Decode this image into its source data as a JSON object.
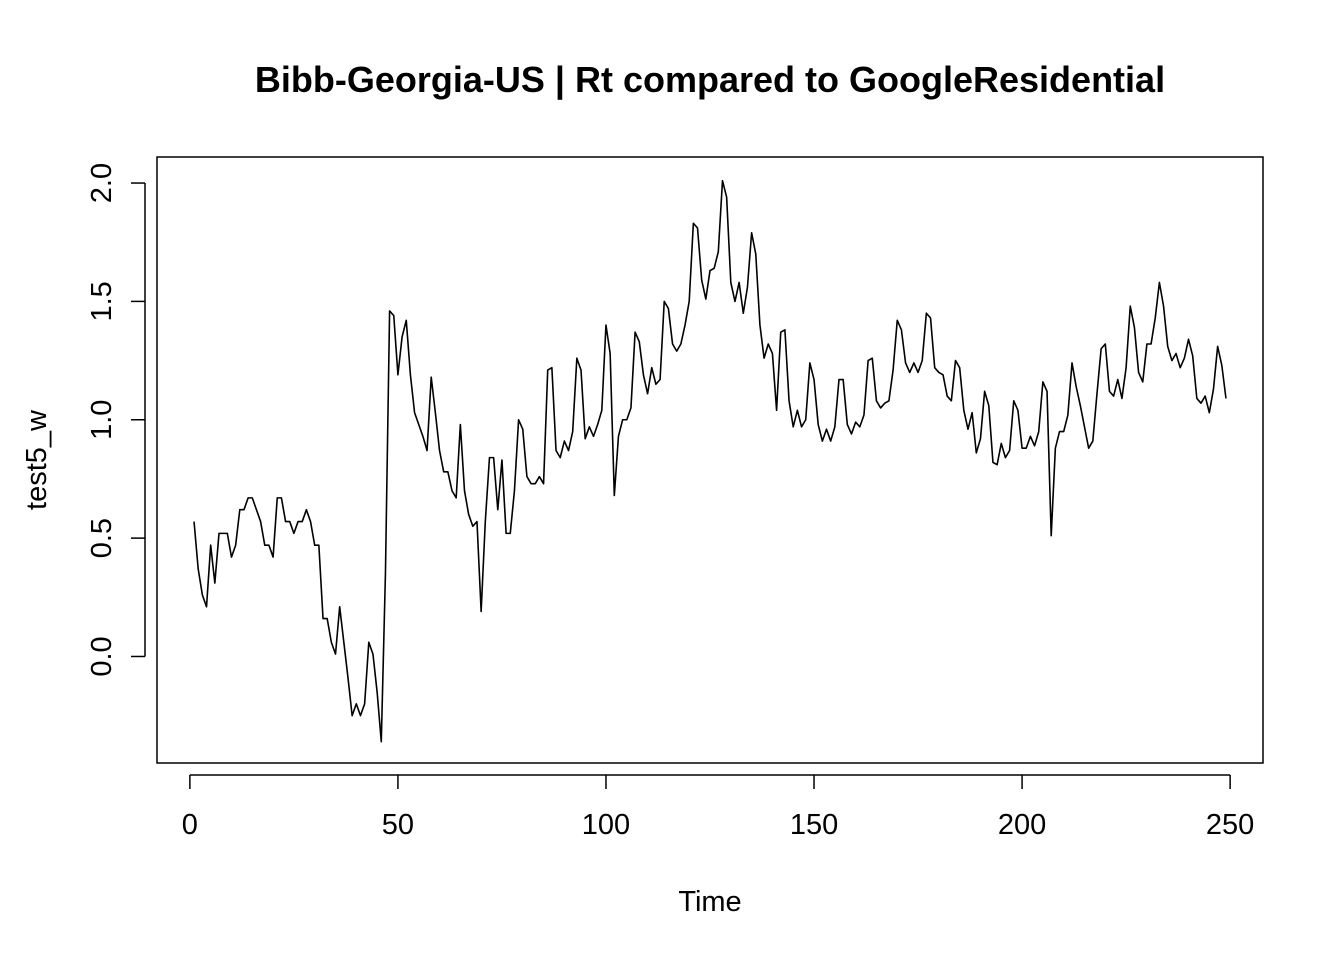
{
  "chart_data": {
    "type": "line",
    "title": "Bibb-Georgia-US | Rt compared to GoogleResidential",
    "xlabel": "Time",
    "ylabel": "test5_w",
    "xlim": [
      -7.9,
      257.9
    ],
    "ylim": [
      -0.45,
      2.11
    ],
    "x_ticks": [
      0,
      50,
      100,
      150,
      200,
      250
    ],
    "y_ticks": [
      0.0,
      0.5,
      1.0,
      1.5,
      2.0
    ],
    "x_tick_labels": [
      "0",
      "50",
      "100",
      "150",
      "200",
      "250"
    ],
    "y_tick_labels": [
      "0.0",
      "0.5",
      "1.0",
      "1.5",
      "2.0"
    ],
    "grid": false,
    "legend": "none",
    "line_color": "#000000",
    "series": [
      {
        "x_start": 1,
        "values": [
          0.57,
          0.37,
          0.26,
          0.21,
          0.47,
          0.31,
          0.52,
          0.52,
          0.52,
          0.42,
          0.47,
          0.62,
          0.62,
          0.67,
          0.67,
          0.62,
          0.57,
          0.47,
          0.47,
          0.42,
          0.67,
          0.67,
          0.57,
          0.57,
          0.52,
          0.57,
          0.57,
          0.62,
          0.57,
          0.47,
          0.47,
          0.16,
          0.16,
          0.06,
          0.01,
          0.21,
          0.06,
          -0.09,
          -0.25,
          -0.2,
          -0.25,
          -0.2,
          0.06,
          0.01,
          -0.15,
          -0.36,
          0.35,
          1.46,
          1.44,
          1.19,
          1.35,
          1.42,
          1.19,
          1.03,
          0.98,
          0.93,
          0.87,
          1.18,
          1.03,
          0.87,
          0.78,
          0.78,
          0.7,
          0.67,
          0.98,
          0.7,
          0.6,
          0.55,
          0.57,
          0.19,
          0.57,
          0.84,
          0.84,
          0.62,
          0.83,
          0.52,
          0.52,
          0.7,
          1.0,
          0.96,
          0.76,
          0.73,
          0.73,
          0.76,
          0.73,
          1.21,
          1.22,
          0.87,
          0.84,
          0.91,
          0.87,
          0.95,
          1.26,
          1.21,
          0.92,
          0.97,
          0.93,
          0.98,
          1.04,
          1.4,
          1.28,
          0.68,
          0.93,
          1.0,
          1.0,
          1.05,
          1.37,
          1.33,
          1.19,
          1.11,
          1.22,
          1.15,
          1.17,
          1.5,
          1.47,
          1.32,
          1.29,
          1.32,
          1.4,
          1.5,
          1.83,
          1.81,
          1.59,
          1.51,
          1.63,
          1.64,
          1.71,
          2.01,
          1.94,
          1.58,
          1.5,
          1.58,
          1.45,
          1.56,
          1.79,
          1.7,
          1.4,
          1.26,
          1.32,
          1.28,
          1.04,
          1.37,
          1.38,
          1.08,
          0.97,
          1.04,
          0.97,
          1.0,
          1.24,
          1.17,
          0.98,
          0.91,
          0.96,
          0.91,
          0.97,
          1.17,
          1.17,
          0.98,
          0.94,
          0.99,
          0.97,
          1.02,
          1.25,
          1.26,
          1.08,
          1.05,
          1.07,
          1.08,
          1.21,
          1.42,
          1.38,
          1.24,
          1.2,
          1.24,
          1.2,
          1.25,
          1.45,
          1.43,
          1.22,
          1.2,
          1.19,
          1.1,
          1.08,
          1.25,
          1.22,
          1.04,
          0.96,
          1.03,
          0.86,
          0.92,
          1.12,
          1.06,
          0.82,
          0.81,
          0.9,
          0.84,
          0.87,
          1.08,
          1.04,
          0.88,
          0.88,
          0.93,
          0.89,
          0.95,
          1.16,
          1.12,
          0.51,
          0.88,
          0.95,
          0.95,
          1.02,
          1.24,
          1.14,
          1.06,
          0.97,
          0.88,
          0.91,
          1.11,
          1.3,
          1.32,
          1.12,
          1.1,
          1.17,
          1.09,
          1.22,
          1.48,
          1.39,
          1.2,
          1.16,
          1.32,
          1.32,
          1.43,
          1.58,
          1.48,
          1.31,
          1.25,
          1.28,
          1.22,
          1.26,
          1.34,
          1.27,
          1.09,
          1.07,
          1.1,
          1.03,
          1.13,
          1.31,
          1.23,
          1.09
        ]
      }
    ]
  }
}
